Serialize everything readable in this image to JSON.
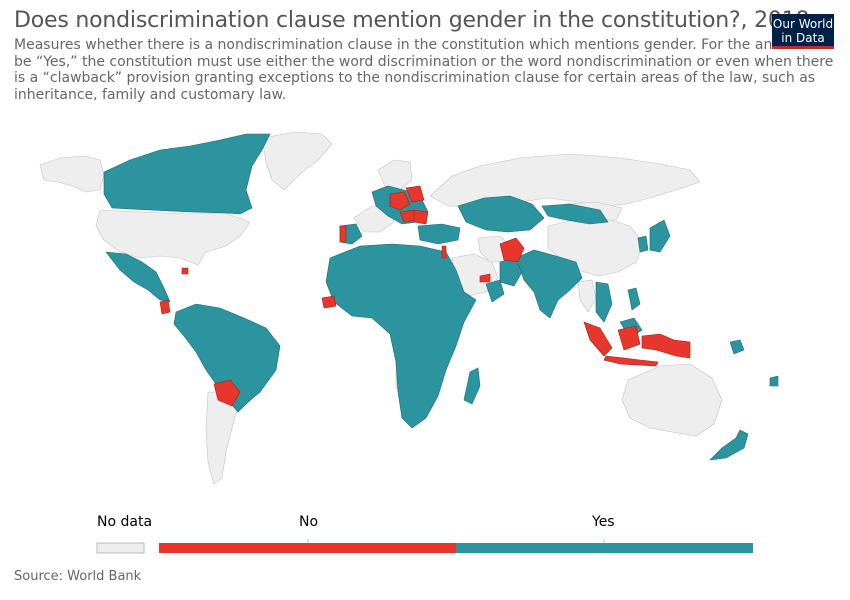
{
  "title": "Does nondiscrimination clause mention gender in the constitution?, 2018",
  "subtitle": "Measures whether there is a nondiscrimination clause in the constitution which mentions gender. For the answer to be “Yes,” the constitution must use either the word discrimination or the word nondiscrimination or even when there is a “clawback” provision granting exceptions to the nondiscrimination clause for certain areas of the law, such as inheritance, family and customary law.",
  "logo": "Our World in Data",
  "legend": {
    "no_data": "No data",
    "no": "No",
    "yes": "Yes"
  },
  "source": "Source: World Bank",
  "colors": {
    "no_data": "#eeeeee",
    "no": "#e7372c",
    "yes": "#2b949e",
    "border": "#9a9a9a",
    "logo_bg": "#002147",
    "logo_bar": "#be2e28"
  }
}
